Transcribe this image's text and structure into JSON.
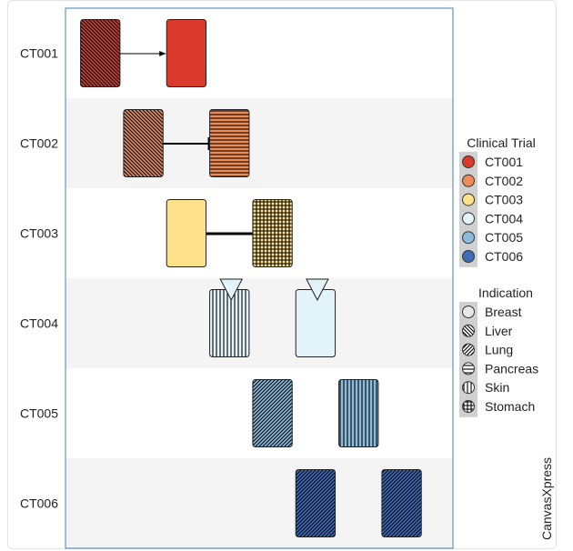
{
  "chart_data": {
    "type": "gantt",
    "categories": [
      "CT001",
      "CT002",
      "CT003",
      "CT004",
      "CT005",
      "CT006"
    ],
    "x_range": [
      0,
      9
    ],
    "tasks": [
      {
        "trial": "CT001",
        "start": 0.35,
        "end": 1.35,
        "indication": "Liver",
        "color": "CT001"
      },
      {
        "trial": "CT001",
        "start": 2.35,
        "end": 3.35,
        "indication": "Breast",
        "color": "CT001"
      },
      {
        "trial": "CT002",
        "start": 1.35,
        "end": 2.35,
        "indication": "Liver",
        "color": "CT002"
      },
      {
        "trial": "CT002",
        "start": 3.35,
        "end": 4.35,
        "indication": "Pancreas",
        "color": "CT002"
      },
      {
        "trial": "CT003",
        "start": 2.35,
        "end": 3.35,
        "indication": "Breast",
        "color": "CT003"
      },
      {
        "trial": "CT003",
        "start": 4.35,
        "end": 5.35,
        "indication": "Stomach",
        "color": "CT003"
      },
      {
        "trial": "CT004",
        "start": 3.35,
        "end": 4.35,
        "indication": "Skin",
        "color": "CT004"
      },
      {
        "trial": "CT004",
        "start": 5.35,
        "end": 6.35,
        "indication": "Breast",
        "color": "CT004"
      },
      {
        "trial": "CT005",
        "start": 4.35,
        "end": 5.35,
        "indication": "Lung",
        "color": "CT005"
      },
      {
        "trial": "CT005",
        "start": 6.35,
        "end": 7.35,
        "indication": "Skin",
        "color": "CT005"
      },
      {
        "trial": "CT006",
        "start": 5.35,
        "end": 6.35,
        "indication": "Lung",
        "color": "CT006"
      },
      {
        "trial": "CT006",
        "start": 7.35,
        "end": 8.35,
        "indication": "Lung",
        "color": "CT006"
      }
    ],
    "dependencies": [
      {
        "trial": "CT001",
        "type": "arrow"
      },
      {
        "trial": "CT002",
        "type": "bar-end"
      },
      {
        "trial": "CT003",
        "type": "thick-line"
      }
    ],
    "milestones": [
      {
        "trial": "CT004",
        "x": 3.85
      },
      {
        "trial": "CT004",
        "x": 5.85
      }
    ],
    "legends": [
      {
        "title": "Clinical Trial",
        "entries": [
          {
            "label": "CT001",
            "color": "#d93a2b"
          },
          {
            "label": "CT002",
            "color": "#f08a56"
          },
          {
            "label": "CT003",
            "color": "#fde08a"
          },
          {
            "label": "CT004",
            "color": "#e2f3fa"
          },
          {
            "label": "CT005",
            "color": "#8cbcdc"
          },
          {
            "label": "CT006",
            "color": "#3e6fb5"
          }
        ]
      },
      {
        "title": "Indication",
        "entries": [
          {
            "label": "Breast",
            "pattern": "solid"
          },
          {
            "label": "Liver",
            "pattern": "diag-left"
          },
          {
            "label": "Lung",
            "pattern": "diag-right"
          },
          {
            "label": "Pancreas",
            "pattern": "horizontal"
          },
          {
            "label": "Skin",
            "pattern": "vertical"
          },
          {
            "label": "Stomach",
            "pattern": "grid"
          }
        ]
      }
    ],
    "watermark": "CanvasXpress"
  }
}
